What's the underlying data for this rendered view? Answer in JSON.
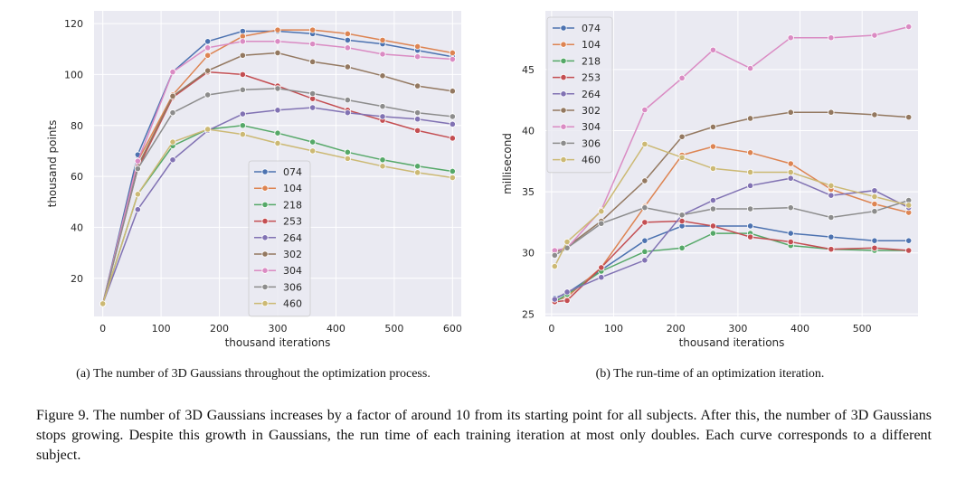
{
  "captions": {
    "a": "(a) The number of 3D Gaussians throughout the optimization process.",
    "b": "(b) The run-time of an optimization iteration.",
    "figure": "Figure 9. The number of 3D Gaussians increases by a factor of around 10 from its starting point for all subjects. After this, the number of 3D Gaussians stops growing. Despite this growth in Gaussians, the run time of each training iteration at most only doubles. Each curve corresponds to a different subject."
  },
  "colors": {
    "074": "#4c72b0",
    "104": "#dd8452",
    "218": "#55a868",
    "253": "#c44e52",
    "264": "#8172b3",
    "302": "#937860",
    "304": "#da8bc3",
    "306": "#8c8c8c",
    "460": "#ccb974",
    "plot_bg": "#eaeaf2",
    "grid": "#ffffff"
  },
  "chart_data": [
    {
      "type": "line",
      "title": "",
      "xlabel": "thousand iterations",
      "ylabel": "thousand points",
      "xlim": [
        -15,
        615
      ],
      "ylim": [
        5,
        125
      ],
      "xticks": [
        0,
        100,
        200,
        300,
        400,
        500,
        600
      ],
      "yticks": [
        20,
        40,
        60,
        80,
        100,
        120
      ],
      "legend_position": "center",
      "x": [
        0,
        60,
        120,
        180,
        240,
        300,
        360,
        420,
        480,
        540,
        600
      ],
      "series": [
        {
          "name": "074",
          "values": [
            10,
            68.5,
            101,
            113,
            117,
            117,
            116,
            113.5,
            112,
            109.5,
            107
          ]
        },
        {
          "name": "104",
          "values": [
            10,
            66,
            92,
            107.5,
            115,
            117.5,
            117.5,
            116,
            113.5,
            111,
            108.5
          ]
        },
        {
          "name": "218",
          "values": [
            10,
            53,
            72,
            78.5,
            80,
            77,
            73.5,
            69.5,
            66.5,
            64,
            62
          ]
        },
        {
          "name": "253",
          "values": [
            10,
            63,
            91,
            101,
            100,
            95.5,
            90.5,
            86,
            82,
            78,
            75
          ]
        },
        {
          "name": "264",
          "values": [
            10,
            47,
            66.5,
            78,
            84.5,
            86,
            87,
            85,
            83.5,
            82.5,
            80.5
          ]
        },
        {
          "name": "302",
          "values": [
            10,
            64,
            91.5,
            101.5,
            107.5,
            108.5,
            105,
            103,
            99.5,
            95.5,
            93.5
          ]
        },
        {
          "name": "304",
          "values": [
            10,
            66,
            101,
            110.5,
            113,
            113,
            112,
            110.5,
            108,
            107,
            106
          ]
        },
        {
          "name": "306",
          "values": [
            10,
            63,
            85,
            92,
            94,
            94.5,
            92.5,
            90,
            87.5,
            85,
            83.5
          ]
        },
        {
          "name": "460",
          "values": [
            10,
            53,
            73.5,
            78.5,
            76.5,
            73,
            70,
            67,
            64,
            61.5,
            59.5
          ]
        }
      ]
    },
    {
      "type": "line",
      "title": "",
      "xlabel": "thousand iterations",
      "ylabel": "millisecond",
      "xlim": [
        -10,
        590
      ],
      "ylim": [
        24.8,
        49.8
      ],
      "xticks": [
        0,
        100,
        200,
        300,
        400,
        500
      ],
      "yticks": [
        25,
        30,
        35,
        40,
        45
      ],
      "legend_position": "top-left",
      "x": [
        5,
        25,
        80,
        150,
        210,
        260,
        320,
        385,
        450,
        520,
        575
      ],
      "series": [
        {
          "name": "074",
          "values": [
            26.3,
            26.7,
            28.6,
            31.0,
            32.2,
            32.2,
            32.2,
            31.6,
            31.3,
            31.0,
            31.0
          ]
        },
        {
          "name": "104",
          "values": [
            26.1,
            26.4,
            28.8,
            33.8,
            38.0,
            38.7,
            38.2,
            37.3,
            35.2,
            34.0,
            33.3
          ]
        },
        {
          "name": "218",
          "values": [
            26.0,
            26.6,
            28.5,
            30.1,
            30.4,
            31.6,
            31.6,
            30.6,
            30.3,
            30.2,
            30.2
          ]
        },
        {
          "name": "253",
          "values": [
            26.0,
            26.1,
            28.8,
            32.5,
            32.6,
            32.2,
            31.3,
            30.9,
            30.3,
            30.4,
            30.2
          ]
        },
        {
          "name": "264",
          "values": [
            26.2,
            26.8,
            28.0,
            29.4,
            33.1,
            34.3,
            35.5,
            36.1,
            34.7,
            35.1,
            33.7
          ]
        },
        {
          "name": "302",
          "values": [
            30.0,
            30.5,
            32.6,
            35.9,
            39.5,
            40.3,
            41.0,
            41.5,
            41.5,
            41.3,
            41.1
          ]
        },
        {
          "name": "304",
          "values": [
            30.2,
            30.4,
            33.5,
            41.7,
            44.3,
            46.6,
            45.1,
            47.6,
            47.6,
            47.8,
            48.5
          ]
        },
        {
          "name": "306",
          "values": [
            29.8,
            30.4,
            32.4,
            33.7,
            33.1,
            33.6,
            33.6,
            33.7,
            32.9,
            33.4,
            34.3
          ]
        },
        {
          "name": "460",
          "values": [
            28.9,
            30.9,
            33.4,
            38.9,
            37.8,
            36.9,
            36.6,
            36.6,
            35.5,
            34.6,
            33.9
          ]
        }
      ]
    }
  ]
}
